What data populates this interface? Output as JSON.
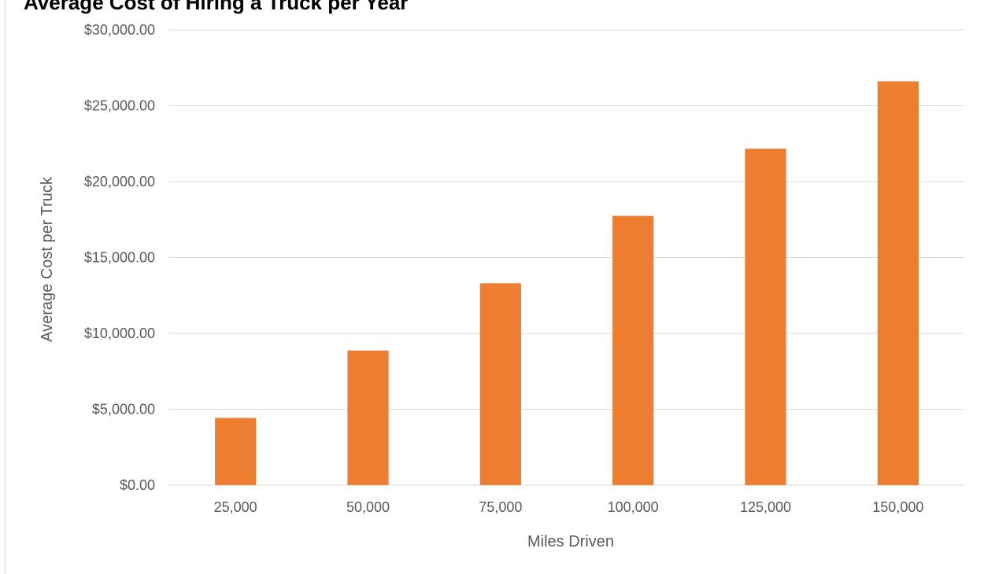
{
  "chart_data": {
    "type": "bar",
    "title": "Average Cost of Hiring a Truck per Year",
    "xlabel": "Miles Driven",
    "ylabel": "Average Cost per Truck",
    "categories": [
      "25,000",
      "50,000",
      "75,000",
      "100,000",
      "125,000",
      "150,000"
    ],
    "values": [
      4430,
      8870,
      13300,
      17740,
      22170,
      26610
    ],
    "ylim": [
      0,
      30000
    ],
    "yticks": [
      0,
      5000,
      10000,
      15000,
      20000,
      25000,
      30000
    ],
    "ytick_labels": [
      "$0.00",
      "$5,000.00",
      "$10,000.00",
      "$15,000.00",
      "$20,000.00",
      "$25,000.00",
      "$30,000.00"
    ],
    "bar_color": "#ED7D31",
    "grid": true,
    "legend": "none"
  }
}
